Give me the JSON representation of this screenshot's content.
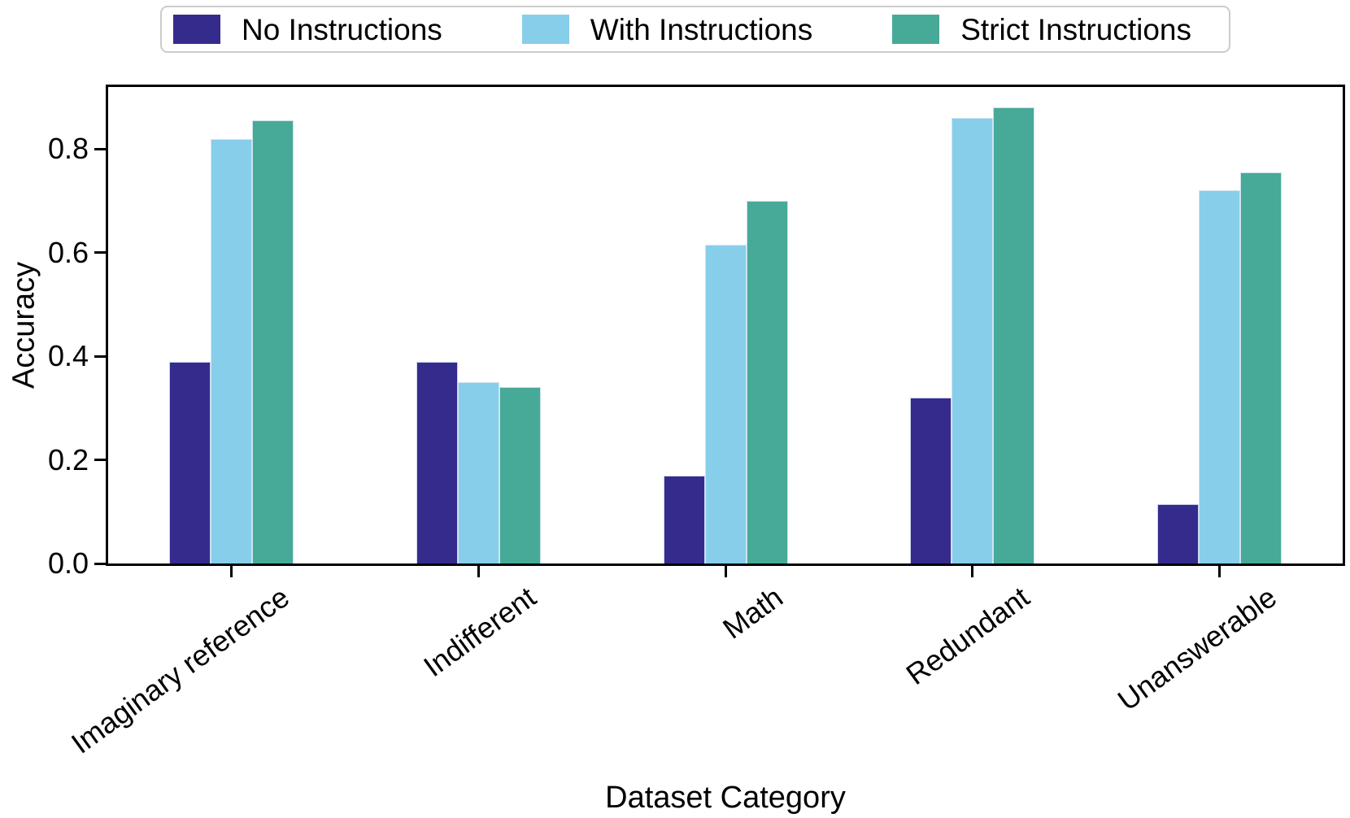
{
  "chart_data": {
    "type": "bar",
    "title": "",
    "xlabel": "Dataset Category",
    "ylabel": "Accuracy",
    "categories": [
      "Imaginary reference",
      "Indifferent",
      "Math",
      "Redundant",
      "Unanswerable"
    ],
    "series": [
      {
        "name": "No Instructions",
        "color": "#352b8d",
        "values": [
          0.39,
          0.39,
          0.17,
          0.32,
          0.115
        ]
      },
      {
        "name": "With Instructions",
        "color": "#87ceeb",
        "values": [
          0.82,
          0.35,
          0.615,
          0.86,
          0.72
        ]
      },
      {
        "name": "Strict Instructions",
        "color": "#47a998",
        "values": [
          0.855,
          0.34,
          0.7,
          0.88,
          0.755
        ]
      }
    ],
    "yticks": [
      0.0,
      0.2,
      0.4,
      0.6,
      0.8
    ],
    "ylim": [
      0,
      0.92
    ],
    "grid": false,
    "legend_position": "top",
    "axis_color": "#000000",
    "bar_edge_color": "#d8e9f5"
  }
}
